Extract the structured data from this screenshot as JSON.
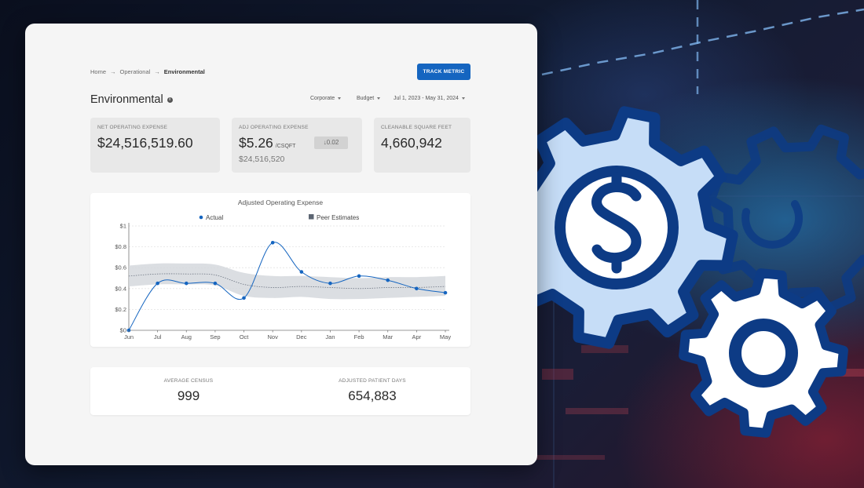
{
  "breadcrumb": {
    "home": "Home",
    "level1": "Operational",
    "current": "Environmental",
    "separator": "→"
  },
  "header": {
    "title": "Environmental",
    "track_button": "TRACK METRIC"
  },
  "filters": {
    "entity": "Corporate",
    "scenario": "Budget",
    "date_range": "Jul 1, 2023 - May 31, 2024"
  },
  "kpis": {
    "net_operating_expense": {
      "label": "NET OPERATING EXPENSE",
      "value": "$24,516,519.60"
    },
    "adj_operating_expense": {
      "label": "ADJ OPERATING EXPENSE",
      "value": "$5.26",
      "unit": "/CSQFT",
      "change": "0.02",
      "sub_value": "$24,516,520"
    },
    "cleanable_square_feet": {
      "label": "CLEANABLE SQUARE FEET",
      "value": "4,660,942"
    }
  },
  "chart_data": {
    "type": "line",
    "title": "Adjusted Operating Expense",
    "categories": [
      "Jun",
      "Jul",
      "Aug",
      "Sep",
      "Oct",
      "Nov",
      "Dec",
      "Jan",
      "Feb",
      "Mar",
      "Apr",
      "May"
    ],
    "series": [
      {
        "name": "Actual",
        "values": [
          0.0,
          0.45,
          0.45,
          0.45,
          0.31,
          0.84,
          0.56,
          0.45,
          0.52,
          0.48,
          0.4,
          0.36
        ],
        "color": "#1565c0"
      }
    ],
    "peer_estimates": {
      "name": "Peer Estimates",
      "mid": [
        0.52,
        0.54,
        0.54,
        0.53,
        0.44,
        0.41,
        0.42,
        0.41,
        0.4,
        0.41,
        0.41,
        0.42
      ],
      "low": [
        0.42,
        0.44,
        0.44,
        0.43,
        0.33,
        0.31,
        0.32,
        0.3,
        0.3,
        0.31,
        0.32,
        0.33
      ],
      "high": [
        0.62,
        0.64,
        0.64,
        0.63,
        0.55,
        0.52,
        0.52,
        0.51,
        0.5,
        0.51,
        0.51,
        0.52
      ],
      "color": "#d5d8dd"
    },
    "y_ticks": [
      "$0",
      "$0.2",
      "$0.4",
      "$0.6",
      "$0.8",
      "$1"
    ],
    "ylim": [
      0,
      1
    ],
    "grid": true,
    "legend_position": "top"
  },
  "stats": {
    "average_census": {
      "label": "AVERAGE CENSUS",
      "value": "999"
    },
    "adjusted_patient_days": {
      "label": "ADJUSTED PATIENT DAYS",
      "value": "654,883"
    }
  },
  "colors": {
    "accent": "#1565c0",
    "gear_fill": "#c6ddf7",
    "gear_stroke": "#0d3b85"
  },
  "icons": {
    "dollar_gear": "dollar-gear-icon",
    "power_gear": "power-gear-icon",
    "cog": "cog-icon"
  }
}
